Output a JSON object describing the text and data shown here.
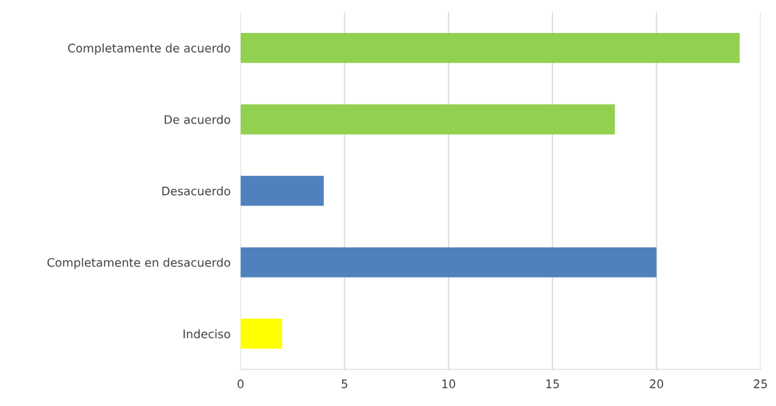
{
  "chart_data": {
    "type": "bar",
    "orientation": "horizontal",
    "categories": [
      "Completamente de acuerdo",
      "De acuerdo",
      "Desacuerdo",
      "Completamente en desacuerdo",
      "Indeciso"
    ],
    "values": [
      24,
      18,
      4,
      20,
      2
    ],
    "colors": [
      "#92d050",
      "#92d050",
      "#4f81bd",
      "#4f81bd",
      "#ffff00"
    ],
    "xlim": [
      0,
      25
    ],
    "xticks": [
      0,
      5,
      10,
      15,
      20,
      25
    ],
    "grid": "x",
    "legend": false
  }
}
